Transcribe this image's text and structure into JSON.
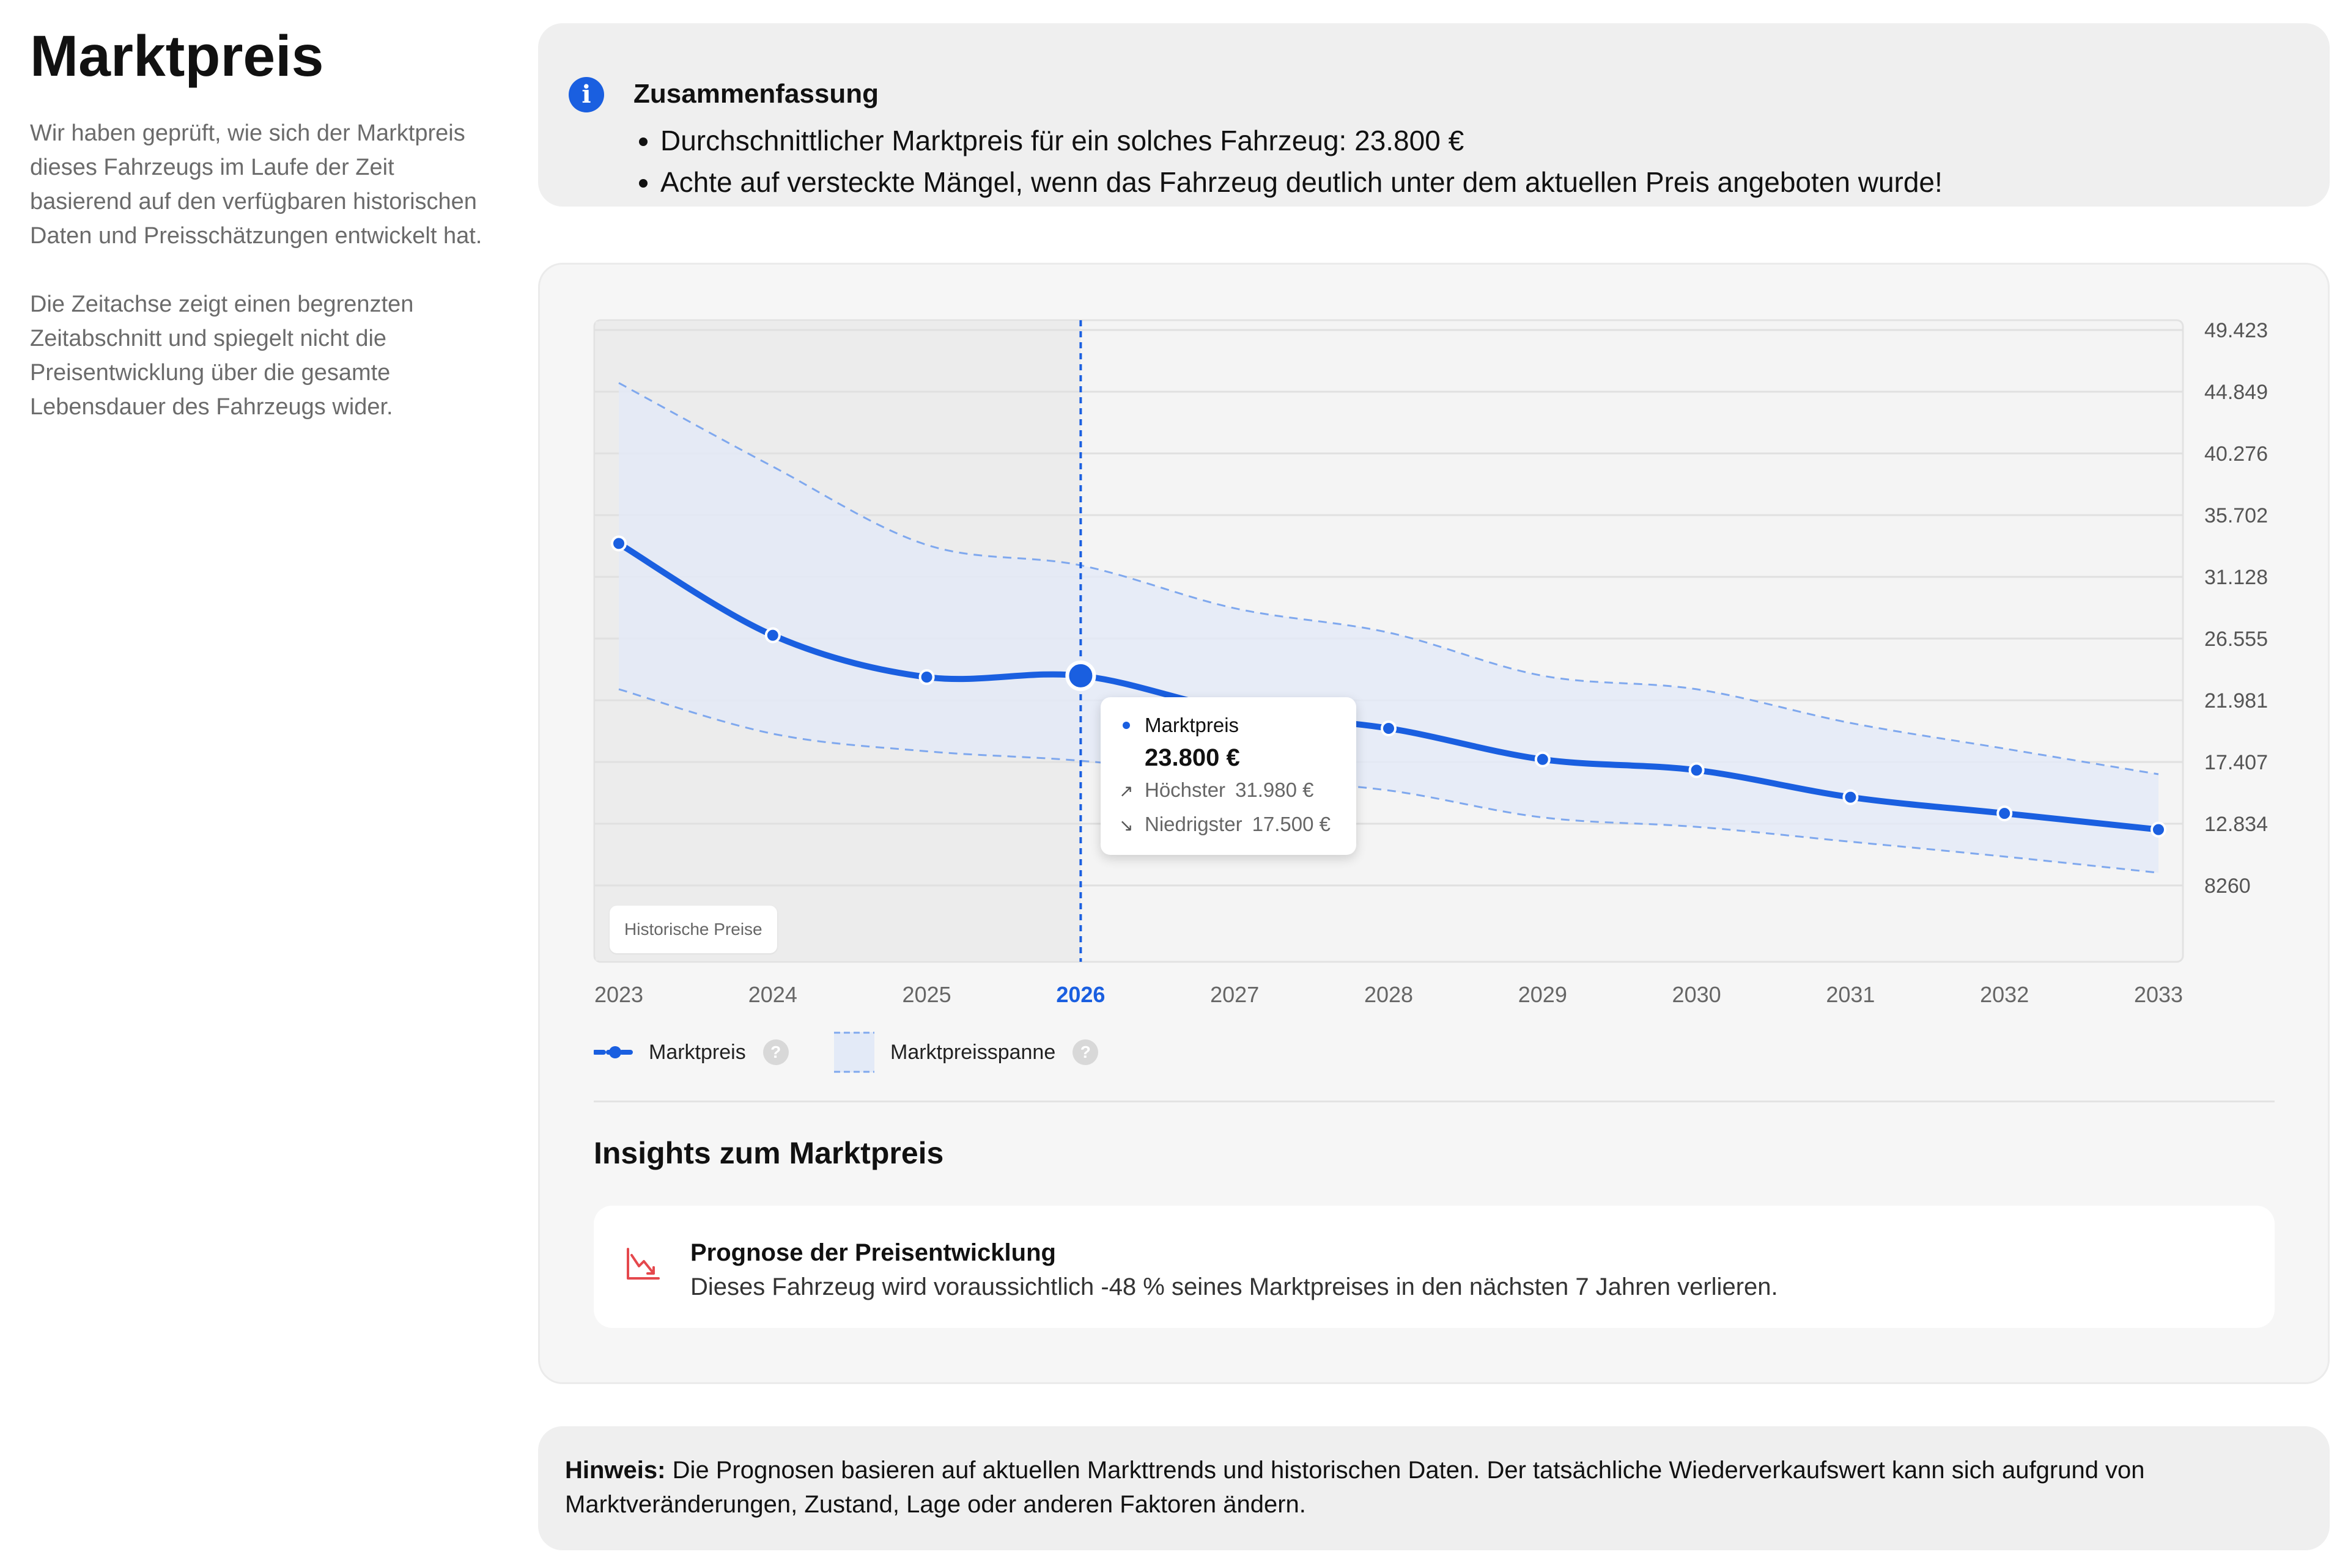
{
  "page": {
    "title": "Marktpreis",
    "description": [
      "Wir haben geprüft, wie sich der Marktpreis dieses Fahrzeugs im Laufe der Zeit basierend auf den verfügbaren historischen Daten und Preisschätzungen entwickelt hat.",
      "Die Zeitachse zeigt einen begrenzten Zeitabschnitt und spiegelt nicht die Preisentwicklung über die gesamte Lebensdauer des Fahrzeugs wider."
    ]
  },
  "summary": {
    "icon": "info-icon",
    "title": "Zusammenfassung",
    "items": [
      "Durchschnittlicher Marktpreis für ein solches Fahrzeug: 23.800 €",
      "Achte auf versteckte Mängel, wenn das Fahrzeug deutlich unter dem aktuellen Preis angeboten wurde!"
    ]
  },
  "chart_data": {
    "type": "line",
    "x": [
      "2023",
      "2024",
      "2025",
      "2026",
      "2027",
      "2028",
      "2029",
      "2030",
      "2031",
      "2032",
      "2033"
    ],
    "current_x": "2026",
    "series": [
      {
        "name": "Marktpreis",
        "values": [
          33600,
          26800,
          23700,
          23800,
          21200,
          19900,
          17600,
          16800,
          14800,
          13600,
          12400
        ]
      },
      {
        "name": "Marktpreisspanne",
        "upper": [
          45500,
          39300,
          33500,
          31980,
          28800,
          27000,
          23800,
          22800,
          20300,
          18400,
          16500
        ],
        "lower": [
          22800,
          19500,
          18200,
          17500,
          16300,
          15300,
          13300,
          12600,
          11500,
          10400,
          9200
        ]
      }
    ],
    "y_ticks": [
      "49.423",
      "44.849",
      "40.276",
      "35.702",
      "31.128",
      "26.555",
      "21.981",
      "17.407",
      "12.834",
      "8260"
    ],
    "y_tick_values": [
      49423,
      44849,
      40276,
      35702,
      31128,
      26555,
      21981,
      17407,
      12834,
      8260
    ],
    "historical_label": "Historische Preise",
    "colors": {
      "line": "#1a5fe0",
      "band_fill": "#e3eaf7",
      "band_stroke": "#7fa8ee",
      "history_bg": "#ececec",
      "grid": "#e0e0e0",
      "current_tick": "#1a5fe0"
    }
  },
  "tooltip": {
    "label": "Marktpreis",
    "value": "23.800 €",
    "high_label": "Höchster",
    "high_value": "31.980 €",
    "low_label": "Niedrigster",
    "low_value": "17.500 €"
  },
  "legend": {
    "line_label": "Marktpreis",
    "band_label": "Marktpreisspanne"
  },
  "insights": {
    "title": "Insights zum Marktpreis",
    "card_title": "Prognose der Preisentwicklung",
    "card_text": "Dieses Fahrzeug wird voraussichtlich -48 % seines Marktpreises in den nächsten 7 Jahren verlieren.",
    "icon": "chart-down-icon",
    "icon_color": "#e5484d"
  },
  "note": {
    "label": "Hinweis:",
    "text": " Die Prognosen basieren auf aktuellen Markttrends und historischen Daten. Der tatsächliche Wiederverkaufswert kann sich aufgrund von Marktveränderungen, Zustand, Lage oder anderen Faktoren ändern."
  }
}
